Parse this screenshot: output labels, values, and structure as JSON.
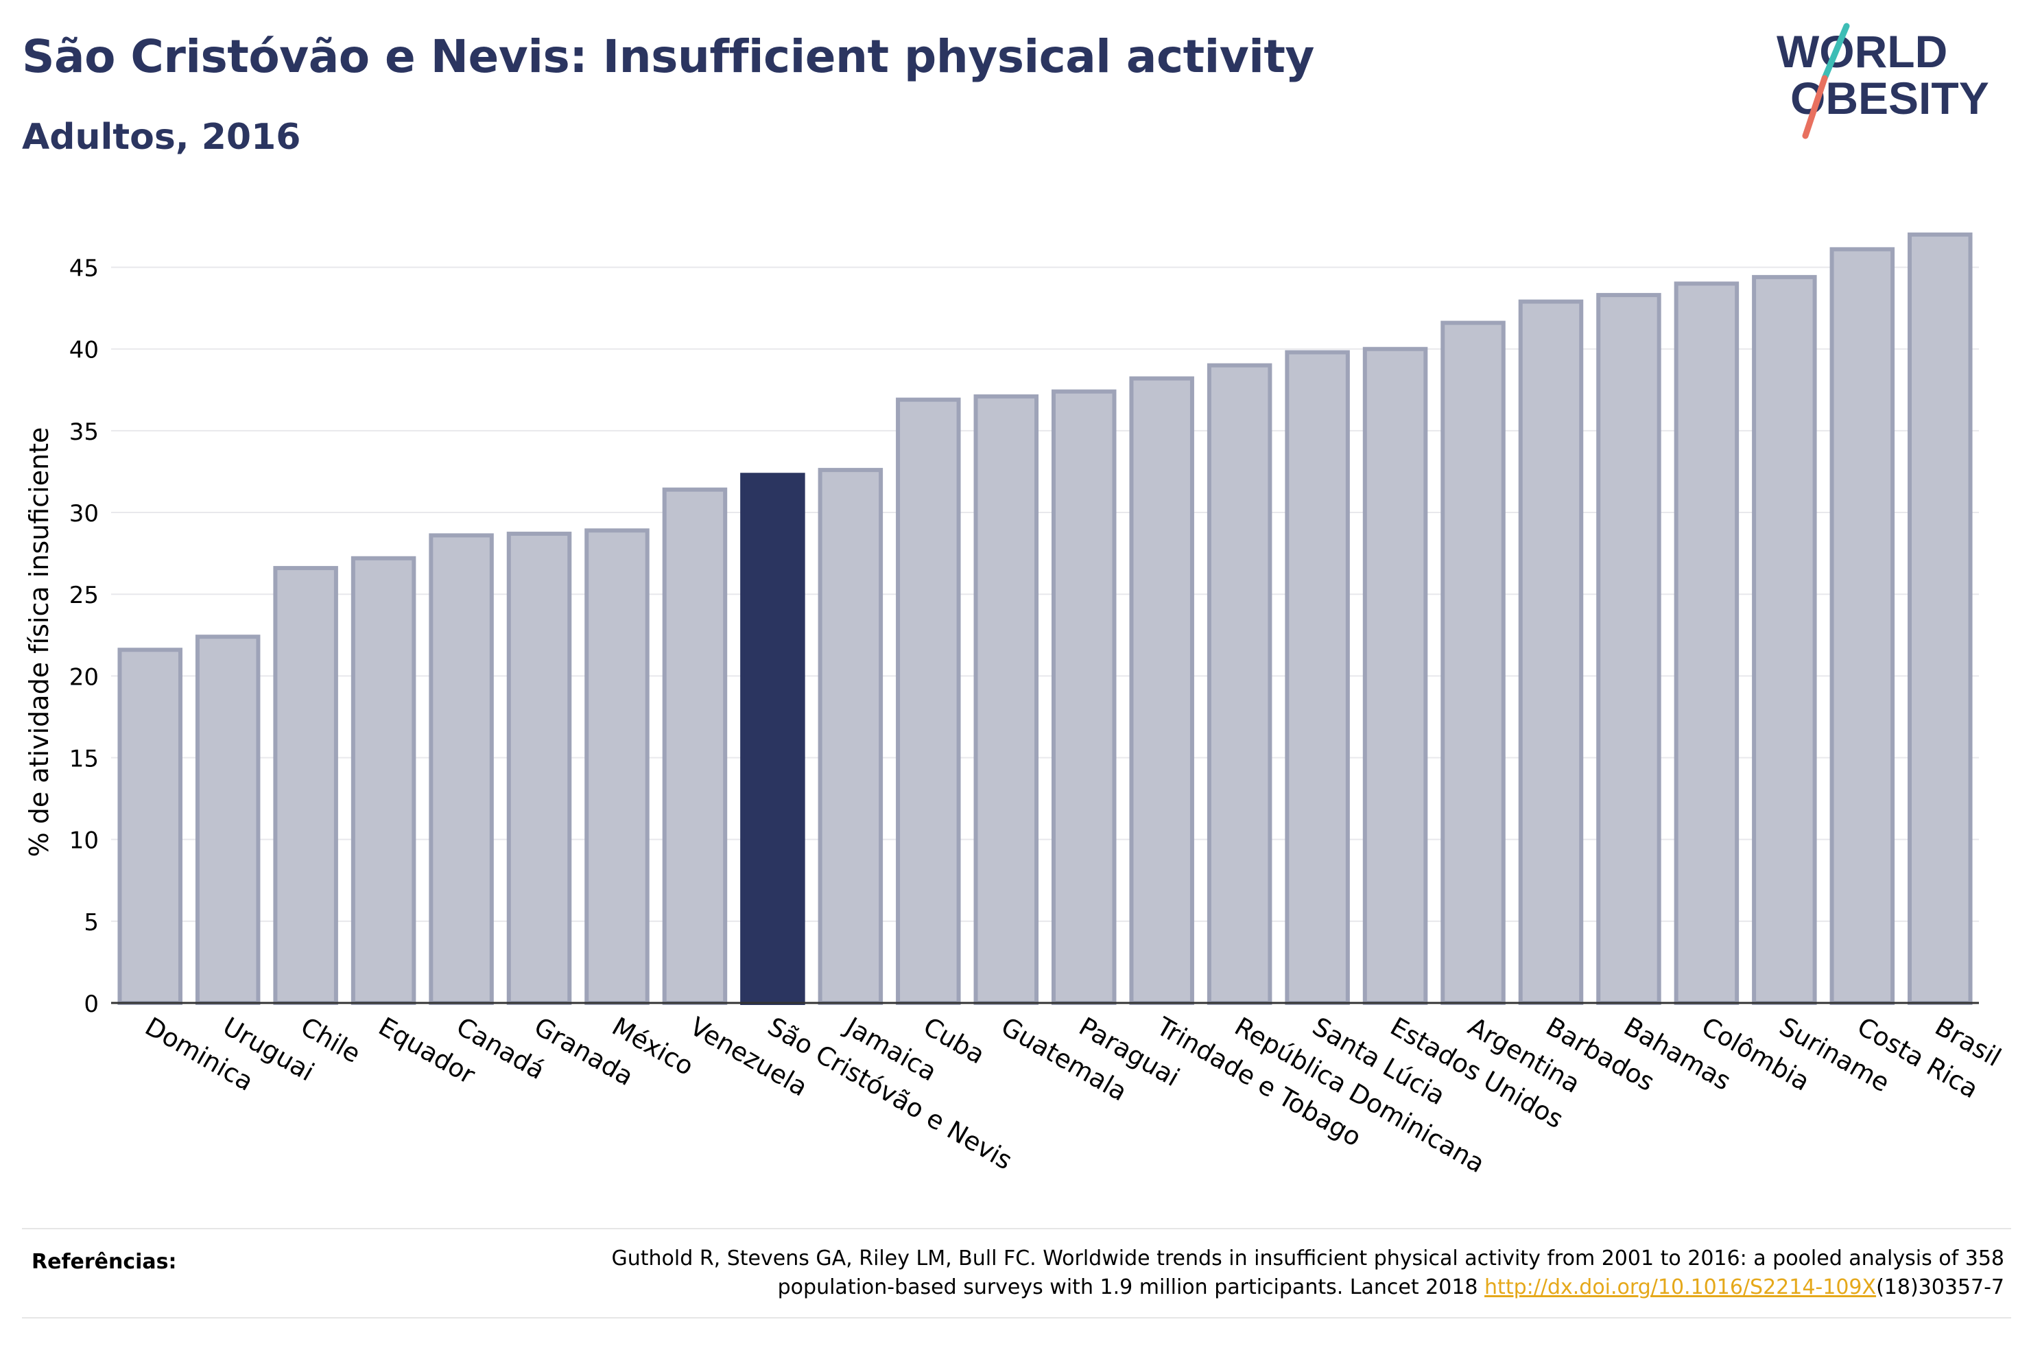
{
  "header": {
    "title": "São Cristóvão e Nevis: Insufficient physical activity",
    "subtitle": "Adultos, 2016"
  },
  "logo": {
    "line1": "WORLD",
    "line2": "OBESITY",
    "colors": {
      "text": "#2b3560",
      "slash_teal": "#3dbdb5",
      "slash_coral": "#e8705f"
    }
  },
  "chart_data": {
    "type": "bar",
    "ylabel": "% de atividade física insuficiente",
    "xlabel": "",
    "ylim": [
      0,
      47.5
    ],
    "yticks": [
      0,
      5,
      10,
      15,
      20,
      25,
      30,
      35,
      40,
      45
    ],
    "grid": true,
    "highlight": "São Cristóvão e Nevis",
    "colors": {
      "bar": "#bfc2cf",
      "bar_border": "#9ea3b8",
      "highlight": "#2b3560"
    },
    "categories": [
      "Dominica",
      "Uruguai",
      "Chile",
      "Equador",
      "Canadá",
      "Granada",
      "México",
      "Venezuela",
      "São Cristóvão e Nevis",
      "Jamaica",
      "Cuba",
      "Guatemala",
      "Paraguai",
      "Trindade e Tobago",
      "República Dominicana",
      "Santa Lúcia",
      "Estados Unidos",
      "Argentina",
      "Barbados",
      "Bahamas",
      "Colômbia",
      "Suriname",
      "Costa Rica",
      "Brasil"
    ],
    "values": [
      21.6,
      22.4,
      26.6,
      27.2,
      28.6,
      28.7,
      28.9,
      31.4,
      32.3,
      32.6,
      36.9,
      37.1,
      37.4,
      38.2,
      39.0,
      39.8,
      40.0,
      41.6,
      42.9,
      43.3,
      44.0,
      44.4,
      46.1,
      47.0
    ]
  },
  "references": {
    "label": "Referências:",
    "text_line1": "Guthold R, Stevens GA, Riley LM, Bull FC. Worldwide trends in insufficient physical activity from 2001 to 2016: a pooled analysis of 358",
    "text_line2_prefix": "population-based surveys with 1.9 million participants. Lancet 2018 ",
    "link_text": "http://dx.doi.org/10.1016/S2214-109X",
    "text_suffix": "(18)30357-7"
  }
}
